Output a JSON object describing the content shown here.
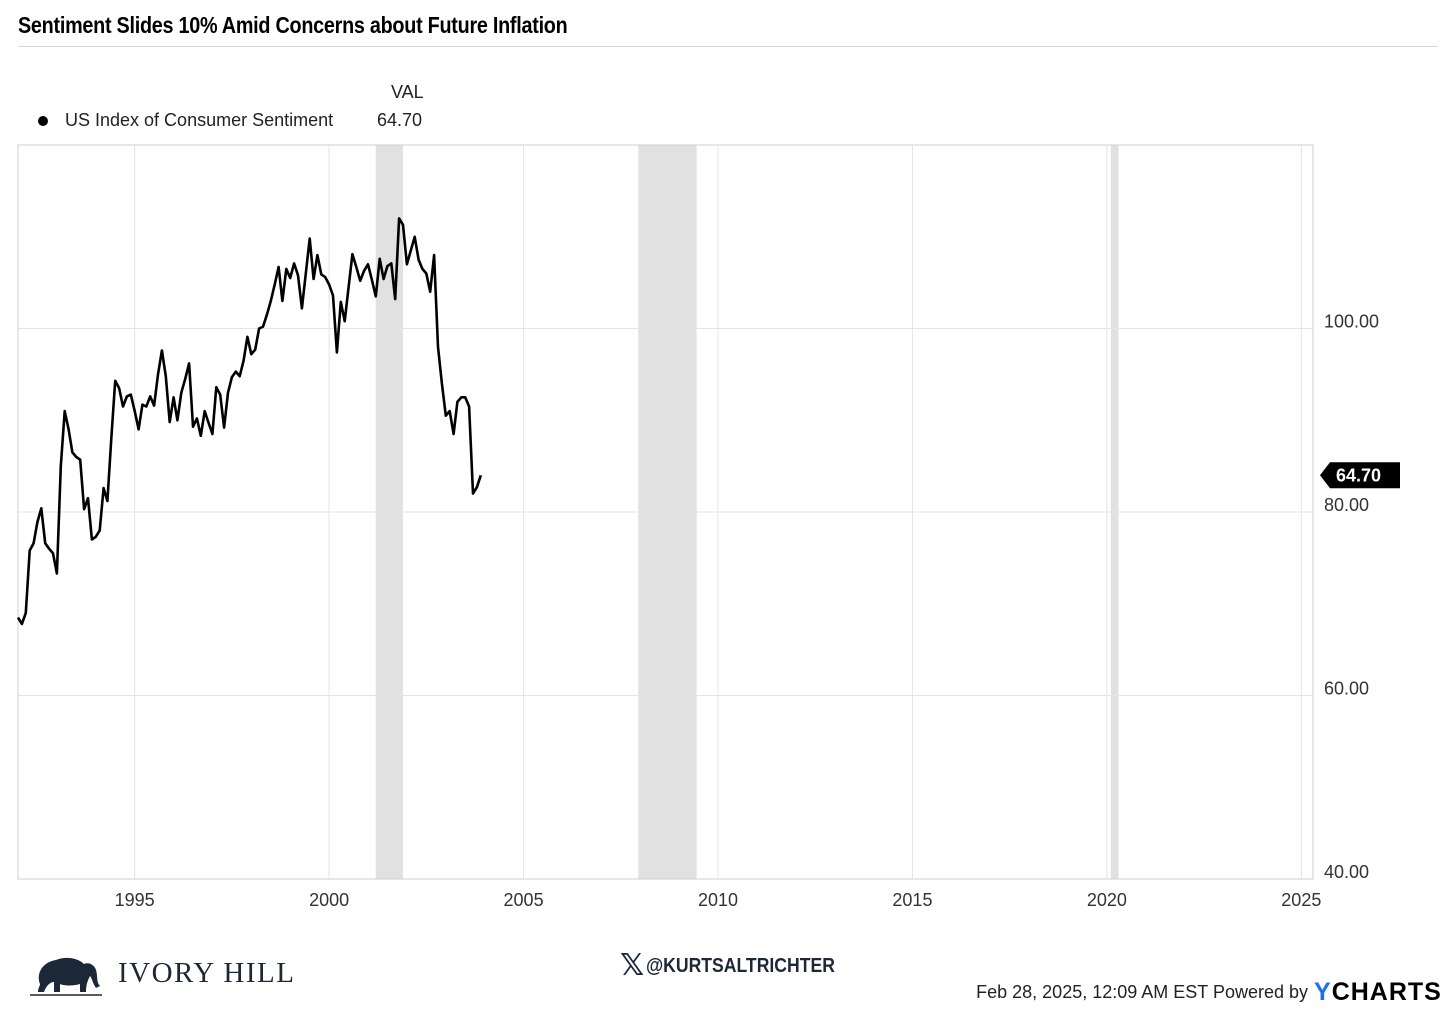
{
  "header": {
    "title": "Sentiment Slides 10% Amid Concerns about Future Inflation"
  },
  "legend": {
    "column_header": "VAL",
    "items": [
      {
        "name": "US Index of Consumer Sentiment",
        "value": "64.70",
        "color": "#000000"
      }
    ]
  },
  "chart_data": {
    "type": "line",
    "title": "Sentiment Slides 10% Amid Concerns about Future Inflation",
    "xlabel": "",
    "ylabel": "",
    "xlim": [
      1992.0,
      2025.3
    ],
    "ylim": [
      40,
      120
    ],
    "x_ticks": [
      "1995",
      "2000",
      "2005",
      "2010",
      "2015",
      "2020",
      "2025"
    ],
    "y_ticks": [
      "40.00",
      "60.00",
      "80.00",
      "100.00"
    ],
    "grid": true,
    "legend_position": "top-left",
    "last_value_label": "64.70",
    "shaded_periods": [
      [
        2001.2,
        2001.9
      ],
      [
        2007.95,
        2009.45
      ],
      [
        2020.1,
        2020.3
      ]
    ],
    "series": [
      {
        "name": "US Index of Consumer Sentiment",
        "color": "#000000",
        "points": [
          [
            1992.0,
            68.5
          ],
          [
            1992.1,
            67.8
          ],
          [
            1992.2,
            69.0
          ],
          [
            1992.3,
            75.8
          ],
          [
            1992.4,
            76.6
          ],
          [
            1992.5,
            78.9
          ],
          [
            1992.6,
            80.4
          ],
          [
            1992.7,
            76.6
          ],
          [
            1992.8,
            76.0
          ],
          [
            1992.9,
            75.5
          ],
          [
            1993.0,
            73.3
          ],
          [
            1993.1,
            85.0
          ],
          [
            1993.2,
            91.0
          ],
          [
            1993.3,
            89.0
          ],
          [
            1993.4,
            86.5
          ],
          [
            1993.5,
            86.0
          ],
          [
            1993.6,
            85.7
          ],
          [
            1993.7,
            80.3
          ],
          [
            1993.8,
            81.5
          ],
          [
            1993.9,
            77.0
          ],
          [
            1994.0,
            77.3
          ],
          [
            1994.1,
            78.0
          ],
          [
            1994.2,
            82.6
          ],
          [
            1994.3,
            81.2
          ],
          [
            1994.4,
            88.0
          ],
          [
            1994.5,
            94.3
          ],
          [
            1994.6,
            93.5
          ],
          [
            1994.7,
            91.5
          ],
          [
            1994.8,
            92.6
          ],
          [
            1994.9,
            92.8
          ],
          [
            1995.0,
            91.0
          ],
          [
            1995.1,
            89.0
          ],
          [
            1995.2,
            91.7
          ],
          [
            1995.3,
            91.5
          ],
          [
            1995.4,
            92.6
          ],
          [
            1995.5,
            91.6
          ],
          [
            1995.6,
            95.0
          ],
          [
            1995.7,
            97.6
          ],
          [
            1995.8,
            94.8
          ],
          [
            1995.9,
            89.8
          ],
          [
            1996.0,
            92.5
          ],
          [
            1996.1,
            90.0
          ],
          [
            1996.2,
            93.0
          ],
          [
            1996.3,
            94.5
          ],
          [
            1996.4,
            96.2
          ],
          [
            1996.5,
            89.3
          ],
          [
            1996.6,
            90.2
          ],
          [
            1996.7,
            88.3
          ],
          [
            1996.8,
            91.0
          ],
          [
            1996.9,
            89.7
          ],
          [
            1997.0,
            88.5
          ],
          [
            1997.1,
            93.6
          ],
          [
            1997.2,
            92.8
          ],
          [
            1997.3,
            89.2
          ],
          [
            1997.4,
            93.0
          ],
          [
            1997.5,
            94.7
          ],
          [
            1997.6,
            95.3
          ],
          [
            1997.7,
            94.8
          ],
          [
            1997.8,
            96.5
          ],
          [
            1997.9,
            99.1
          ],
          [
            1998.0,
            97.2
          ],
          [
            1998.1,
            97.7
          ],
          [
            1998.2,
            100.0
          ],
          [
            1998.3,
            100.2
          ],
          [
            1998.4,
            101.5
          ],
          [
            1998.5,
            103.0
          ],
          [
            1998.6,
            104.8
          ],
          [
            1998.7,
            106.7
          ],
          [
            1998.8,
            103.0
          ],
          [
            1998.9,
            106.5
          ],
          [
            1999.0,
            105.5
          ],
          [
            1999.1,
            107.1
          ],
          [
            1999.2,
            105.8
          ],
          [
            1999.3,
            102.2
          ],
          [
            1999.4,
            106.0
          ],
          [
            1999.5,
            109.8
          ],
          [
            1999.6,
            105.4
          ],
          [
            1999.7,
            108.0
          ],
          [
            1999.8,
            105.9
          ],
          [
            1999.9,
            105.6
          ],
          [
            2000.0,
            104.8
          ],
          [
            2000.1,
            103.6
          ],
          [
            2000.2,
            97.4
          ],
          [
            2000.3,
            102.9
          ],
          [
            2000.4,
            100.8
          ],
          [
            2000.5,
            104.5
          ],
          [
            2000.6,
            108.1
          ],
          [
            2000.7,
            106.7
          ],
          [
            2000.8,
            105.2
          ],
          [
            2000.9,
            106.3
          ],
          [
            2001.0,
            107.0
          ],
          [
            2001.1,
            105.3
          ],
          [
            2001.2,
            103.5
          ],
          [
            2001.3,
            107.6
          ],
          [
            2001.4,
            105.4
          ],
          [
            2001.5,
            106.8
          ],
          [
            2001.6,
            107.1
          ],
          [
            2001.7,
            103.2
          ],
          [
            2001.8,
            112.0
          ],
          [
            2001.9,
            111.3
          ],
          [
            2002.0,
            107.0
          ],
          [
            2002.1,
            108.5
          ],
          [
            2002.2,
            110.0
          ],
          [
            2002.3,
            107.5
          ],
          [
            2002.4,
            106.5
          ],
          [
            2002.5,
            106.0
          ],
          [
            2002.6,
            104.0
          ],
          [
            2002.7,
            108.0
          ],
          [
            2002.8,
            98.0
          ],
          [
            2002.9,
            94.0
          ],
          [
            2003.0,
            90.5
          ],
          [
            2003.1,
            91.0
          ],
          [
            2003.2,
            88.5
          ],
          [
            2003.3,
            92.0
          ],
          [
            2003.4,
            92.5
          ],
          [
            2003.5,
            92.5
          ],
          [
            2003.6,
            91.5
          ],
          [
            2003.7,
            82.0
          ],
          [
            2003.8,
            82.7
          ],
          [
            2003.9,
            84.0
          ]
        ]
      }
    ]
  },
  "footer": {
    "brand": "IVORY HILL",
    "social_handle": "@KURTSALTRICHTER",
    "timestamp": "Feb 28, 2025, 12:09 AM EST Powered by",
    "powered_by_y": "Y",
    "powered_by_rest": "CHARTS"
  }
}
